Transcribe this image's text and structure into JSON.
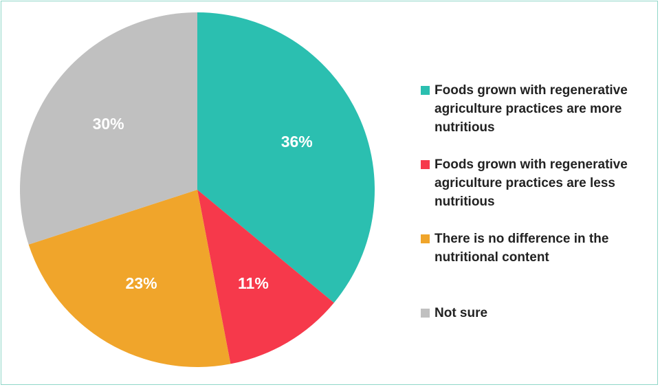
{
  "chart_data": {
    "type": "pie",
    "title": "",
    "slices": [
      {
        "label": "Foods grown with regenerative agriculture practices are more nutritious",
        "value": 36,
        "display": "36%",
        "color": "#2bbfb0"
      },
      {
        "label": "Foods grown with regenerative agriculture practices are less nutritious",
        "value": 11,
        "display": "11%",
        "color": "#f6394b"
      },
      {
        "label": "There is no difference in the nutritional content",
        "value": 23,
        "display": "23%",
        "color": "#f0a52b"
      },
      {
        "label": "Not sure",
        "value": 30,
        "display": "30%",
        "color": "#c0c0c0"
      }
    ],
    "start_angle": "12 o'clock",
    "direction": "clockwise",
    "legend_position": "right"
  }
}
